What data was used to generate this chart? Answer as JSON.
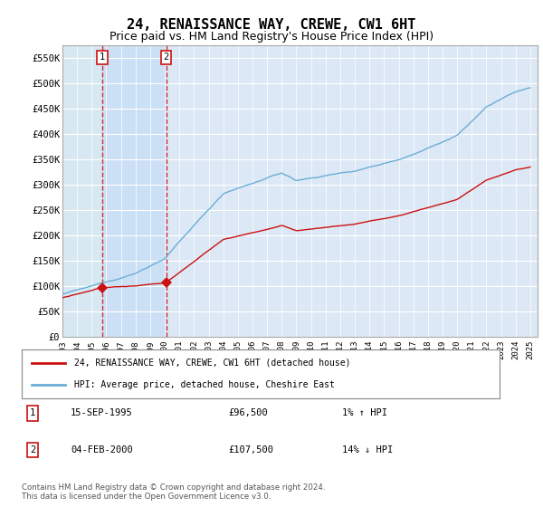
{
  "title": "24, RENAISSANCE WAY, CREWE, CW1 6HT",
  "subtitle": "Price paid vs. HM Land Registry's House Price Index (HPI)",
  "ylim": [
    0,
    575000
  ],
  "yticks": [
    0,
    50000,
    100000,
    150000,
    200000,
    250000,
    300000,
    350000,
    400000,
    450000,
    500000,
    550000
  ],
  "ytick_labels": [
    "£0",
    "£50K",
    "£100K",
    "£150K",
    "£200K",
    "£250K",
    "£300K",
    "£350K",
    "£400K",
    "£450K",
    "£500K",
    "£550K"
  ],
  "xmin": 1993,
  "xmax": 2025.5,
  "plot_bg_color": "#dce8f5",
  "hatch_color": "#c8d8eb",
  "hpi_color": "#6aaed6",
  "price_color": "#cc1111",
  "highlight_color": "#cce0f5",
  "sale1_date": 1995.71,
  "sale1_price": 96500,
  "sale2_date": 2000.09,
  "sale2_price": 107500,
  "legend_label1": "24, RENAISSANCE WAY, CREWE, CW1 6HT (detached house)",
  "legend_label2": "HPI: Average price, detached house, Cheshire East",
  "table_entries": [
    {
      "num": "1",
      "date": "15-SEP-1995",
      "price": "£96,500",
      "pct": "1% ↑ HPI"
    },
    {
      "num": "2",
      "date": "04-FEB-2000",
      "price": "£107,500",
      "pct": "14% ↓ HPI"
    }
  ],
  "footer": "Contains HM Land Registry data © Crown copyright and database right 2024.\nThis data is licensed under the Open Government Licence v3.0.",
  "title_fontsize": 11,
  "subtitle_fontsize": 9
}
